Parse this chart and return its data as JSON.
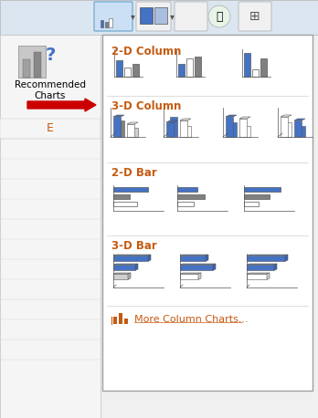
{
  "bg_color": "#f0f0f0",
  "panel_color": "#ffffff",
  "panel_border": "#b0b0b0",
  "section_titles": [
    "2-D Column",
    "3-D Column",
    "2-D Bar",
    "3-D Bar"
  ],
  "section_title_color": "#C55A11",
  "section_title_fontsize": 8.5,
  "blue_color": "#4472C4",
  "gray_color": "#808080",
  "light_gray": "#d0d0d0",
  "white_color": "#ffffff",
  "arrow_color": "#cc0000",
  "footer_text": "More Column Charts...",
  "footer_color": "#C55A11",
  "toolbar_bg": "#dce6f1"
}
